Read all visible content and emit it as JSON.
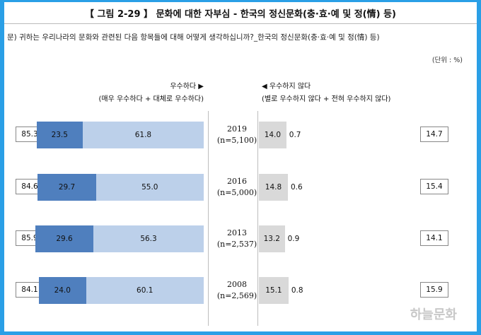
{
  "title": "【 그림 2-29 】 문화에 대한 자부심 - 한국의 정신문화(충·효·예 및 정(情) 등)",
  "question": "문) 귀하는 우리나라의 문화와 관련된 다음 항목들에 대해 어떻게 생각하십니까?_한국의 정신문화(충·효·예 및 정(情) 등)",
  "unit": "(단위 : %)",
  "headers": {
    "positive": "우수하다 ▶",
    "positive_sub": "(매우 우수하다 + 대체로 우수하다)",
    "negative": "◀ 우수하지 않다",
    "negative_sub": "(별로 우수하지 않다 + 전혀 우수하지 않다)"
  },
  "watermark": "하늘문화",
  "chart_data": {
    "type": "bar",
    "orientation": "horizontal-diverging",
    "series_colors": {
      "very_excellent": "#4f7fbe",
      "fairly_excellent": "#bcd0ea",
      "not_very_excellent": "#d9d9d9",
      "not_at_all_excellent": "#ffffff"
    },
    "rows": [
      {
        "year": "2019",
        "n": "(n=5,100)",
        "positive_total": "85.3",
        "very": 23.5,
        "fairly": 61.8,
        "not_very": 14.0,
        "not_at_all": 0.7,
        "negative_total": "14.7"
      },
      {
        "year": "2016",
        "n": "(n=5,000)",
        "positive_total": "84.6",
        "very": 29.7,
        "fairly": 55.0,
        "not_very": 14.8,
        "not_at_all": 0.6,
        "negative_total": "15.4"
      },
      {
        "year": "2013",
        "n": "(n=2,537)",
        "positive_total": "85.9",
        "very": 29.6,
        "fairly": 56.3,
        "not_very": 13.2,
        "not_at_all": 0.9,
        "negative_total": "14.1"
      },
      {
        "year": "2008",
        "n": "(n=2,569)",
        "positive_total": "84.1",
        "very": 24.0,
        "fairly": 60.1,
        "not_very": 15.1,
        "not_at_all": 0.8,
        "negative_total": "15.9"
      }
    ]
  }
}
